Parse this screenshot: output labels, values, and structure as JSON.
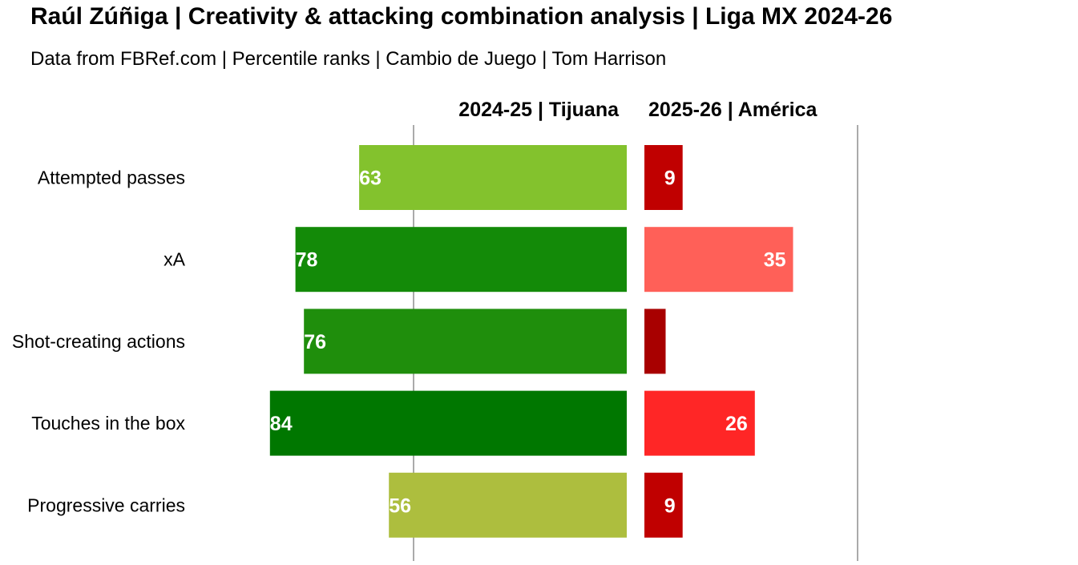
{
  "header": {
    "title": "Raúl Zúñiga | Creativity & attacking combination analysis | Liga MX 2024-26",
    "subtitle": "Data from FBRef.com | Percentile ranks | Cambio de Juego | Tom Harrison"
  },
  "chart_data": {
    "type": "bar",
    "orientation": "horizontal-diverging",
    "categories": [
      "Attempted passes",
      "xA",
      "Shot-creating actions",
      "Touches in the box",
      "Progressive carries"
    ],
    "series": [
      {
        "name": "2024-25 | Tijuana",
        "side": "left",
        "values": [
          63,
          78,
          76,
          84,
          56
        ],
        "labels": [
          "63",
          "78",
          "76",
          "84",
          "56"
        ],
        "colors": [
          "#83c22d",
          "#138a08",
          "#1f8e0c",
          "#007700",
          "#adbe3e"
        ]
      },
      {
        "name": "2025-26 | América",
        "side": "right",
        "values": [
          9,
          35,
          5,
          26,
          9
        ],
        "labels": [
          "9",
          "35",
          "",
          "26",
          "9"
        ],
        "colors": [
          "#c00000",
          "#ff6058",
          "#a80000",
          "#ff2626",
          "#c00000"
        ]
      }
    ],
    "xlim": [
      0,
      100
    ],
    "reference_line": 50,
    "grid": false,
    "legend": "column headers above bars"
  }
}
